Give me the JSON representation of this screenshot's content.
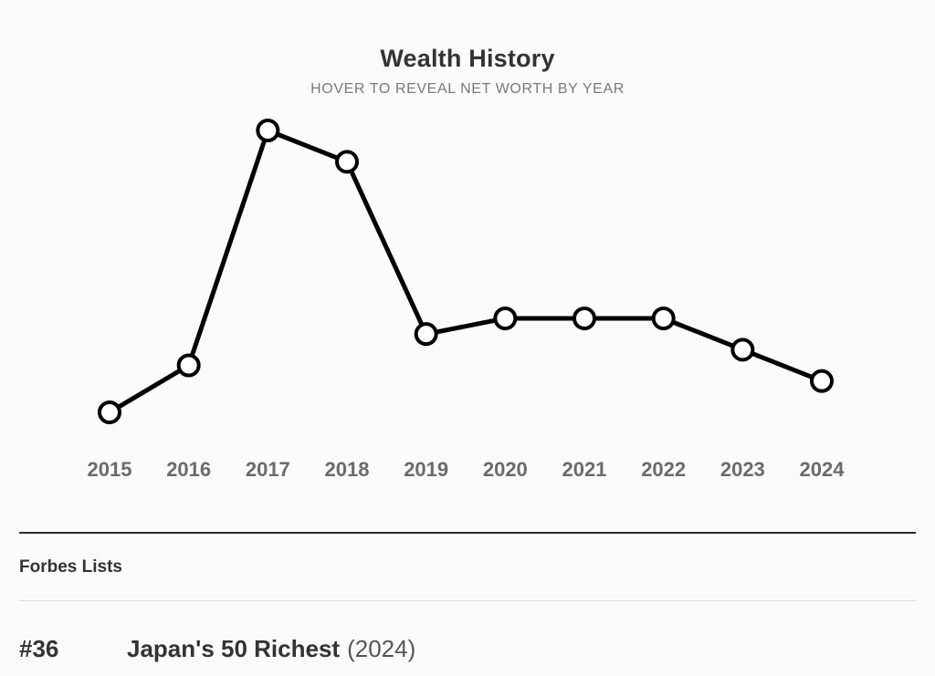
{
  "wealth_history": {
    "title": "Wealth History",
    "subtitle": "HOVER TO REVEAL NET WORTH BY YEAR"
  },
  "chart_data": {
    "type": "line",
    "title": "Wealth History",
    "subtitle": "HOVER TO REVEAL NET WORTH BY YEAR",
    "x": [
      "2015",
      "2016",
      "2017",
      "2018",
      "2019",
      "2020",
      "2021",
      "2022",
      "2023",
      "2024"
    ],
    "series": [
      {
        "values": [
          0.0,
          1.5,
          9.0,
          8.0,
          2.5,
          3.0,
          3.0,
          3.0,
          2.0,
          1.0
        ]
      }
    ],
    "ylim": [
      0,
      9
    ],
    "y_axis_visible": false,
    "grid": false,
    "legend": "none",
    "line_color": "#000000",
    "marker_fill": "#ffffff"
  },
  "forbes_lists": {
    "section_title": "Forbes Lists",
    "items": [
      {
        "rank": "#36",
        "name": "Japan's 50 Richest",
        "year": "(2024)"
      }
    ]
  }
}
